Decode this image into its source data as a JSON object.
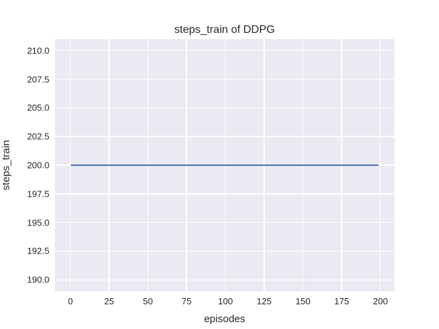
{
  "chart_data": {
    "type": "line",
    "title": "steps_train of DDPG",
    "xlabel": "episodes",
    "ylabel": "steps_train",
    "series": [
      {
        "name": "steps_train",
        "x": [
          0,
          199
        ],
        "y": [
          200,
          200
        ],
        "constant_value": 200,
        "color": "#4c72b0"
      }
    ],
    "xticks": [
      0,
      25,
      50,
      75,
      100,
      125,
      150,
      175,
      200
    ],
    "xtick_labels": [
      "0",
      "25",
      "50",
      "75",
      "100",
      "125",
      "150",
      "175",
      "200"
    ],
    "yticks": [
      190.0,
      192.5,
      195.0,
      197.5,
      200.0,
      202.5,
      205.0,
      207.5,
      210.0
    ],
    "ytick_labels": [
      "190.0",
      "192.5",
      "195.0",
      "197.5",
      "200.0",
      "202.5",
      "205.0",
      "207.5",
      "210.0"
    ],
    "xlim": [
      -10,
      209
    ],
    "ylim": [
      189,
      211
    ],
    "grid": true,
    "legend_position": "none",
    "colors": {
      "figure_background": "#ffffff",
      "plot_background": "#eaeaf2",
      "gridline": "#ffffff",
      "line": "#4c72b0",
      "text": "#262626"
    }
  }
}
